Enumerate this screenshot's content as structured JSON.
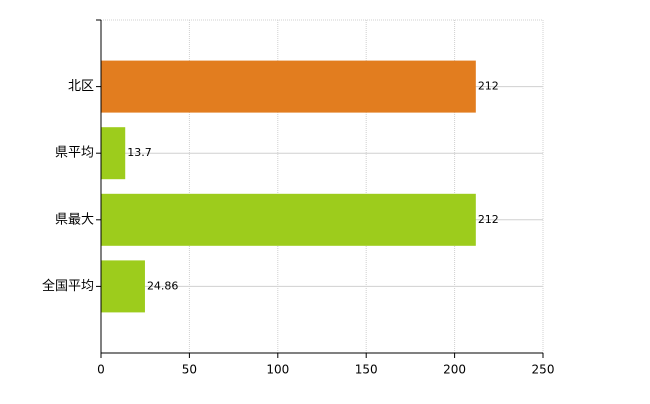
{
  "chart_data": {
    "type": "bar",
    "orientation": "horizontal",
    "categories": [
      "北区",
      "県平均",
      "県最大",
      "全国平均"
    ],
    "values": [
      212,
      13.7,
      212,
      24.86
    ],
    "colors": [
      "#e27d1f",
      "#9dcc1c",
      "#9dcc1c",
      "#9dcc1c"
    ],
    "xlim": [
      0,
      250
    ],
    "xticks": [
      0,
      50,
      100,
      150,
      200,
      250
    ],
    "grid": true
  }
}
